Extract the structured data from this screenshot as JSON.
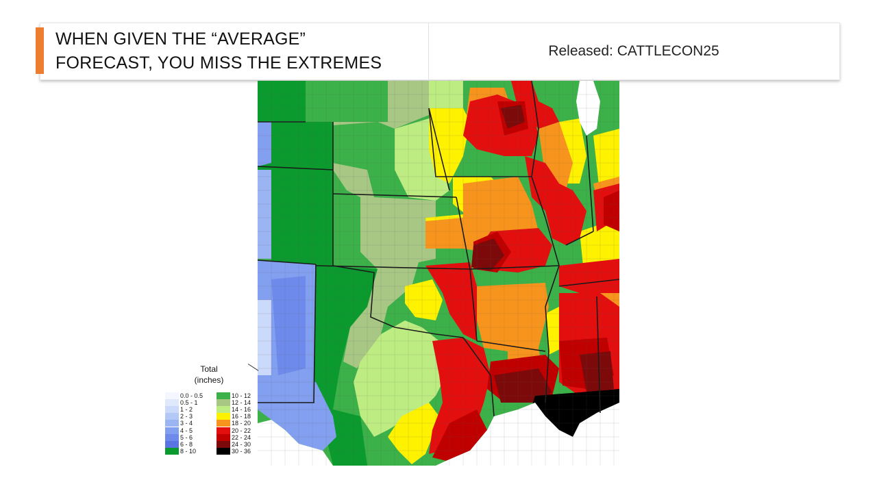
{
  "header": {
    "title_line1": "WHEN GIVEN THE “AVERAGE”",
    "title_line2": "FORECAST, YOU MISS THE EXTREMES",
    "released": "Released: CATTLECON25",
    "accent_color": "#ed7d31"
  },
  "legend": {
    "title_line1": "Total",
    "title_line2": "(inches)",
    "left": [
      {
        "label": "0.0 - 0.5",
        "color": "#f4f7ff"
      },
      {
        "label": "0.5 - 1",
        "color": "#e0e9fc"
      },
      {
        "label": "1 - 2",
        "color": "#cbd9fa"
      },
      {
        "label": "2 - 3",
        "color": "#b3c8f7"
      },
      {
        "label": "3 - 4",
        "color": "#9bb5f3"
      },
      {
        "label": "4 - 5",
        "color": "#839fef"
      },
      {
        "label": "5 - 6",
        "color": "#6e8beb"
      },
      {
        "label": "6 - 8",
        "color": "#5a74e4"
      },
      {
        "label": "8 - 10",
        "color": "#0b9a2e"
      }
    ],
    "right": [
      {
        "label": "10 - 12",
        "color": "#3cb14a"
      },
      {
        "label": "12 - 14",
        "color": "#a8c785"
      },
      {
        "label": "14 - 16",
        "color": "#bdec82"
      },
      {
        "label": "16 - 18",
        "color": "#fef200"
      },
      {
        "label": "18 - 20",
        "color": "#f7941d"
      },
      {
        "label": "20 - 22",
        "color": "#e30f0f"
      },
      {
        "label": "22 - 24",
        "color": "#c00000"
      },
      {
        "label": "24 - 30",
        "color": "#7d0a0a"
      },
      {
        "label": "30 - 36",
        "color": "#000000"
      }
    ]
  }
}
